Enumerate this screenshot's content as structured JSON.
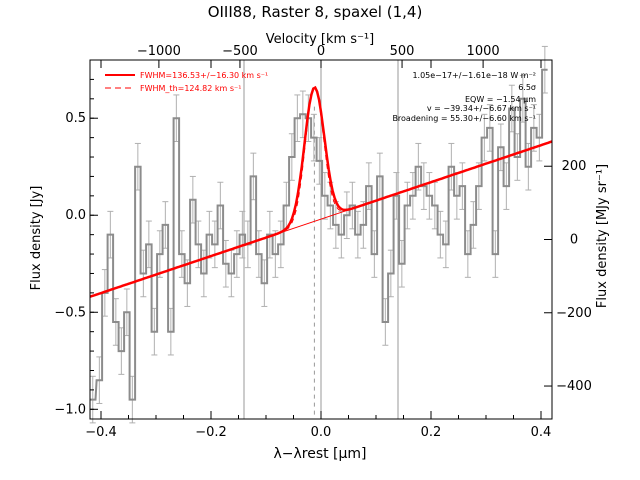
{
  "chart_data": {
    "type": "line",
    "title": "OIII88, Raster 8, spaxel (1,4)",
    "xlabel": "λ−λrest [μm]",
    "ylabel": "Flux density [Jy]",
    "y2label": "Flux density [MJy sr⁻¹]",
    "topxlabel": "Velocity [km s⁻¹]",
    "xlim": [
      -0.42,
      0.42
    ],
    "ylim": [
      -1.05,
      0.8
    ],
    "y2lim": [
      -490,
      490
    ],
    "xticks": [
      -0.4,
      -0.2,
      0.0,
      0.2,
      0.4
    ],
    "xticklabels": [
      "−0.4",
      "−0.2",
      "0.0",
      "0.2",
      "0.4"
    ],
    "yticks": [
      -1.0,
      -0.5,
      0.0,
      0.5
    ],
    "yticklabels": [
      "−1.0",
      "−0.5",
      "0.0",
      "0.5"
    ],
    "y2ticks": [
      -400,
      -200,
      0,
      200
    ],
    "y2ticklabels": [
      "−400",
      "−200",
      "0",
      "200"
    ],
    "top_velocity_ticks": [
      -1000,
      -500,
      0,
      500,
      1000
    ],
    "top_velocity_labels": [
      "−1000",
      "−500",
      "0",
      "500",
      "1000"
    ],
    "vertical_lines_x": [
      -0.14,
      0.0,
      0.14
    ],
    "legend": [
      {
        "label": "FWHM=136.53+/−16.30 km s⁻¹",
        "style": "solid",
        "color": "#ff0000"
      },
      {
        "label": "FWHM_th=124.82 km s⁻¹",
        "style": "dashed",
        "color": "#ff0000"
      }
    ],
    "annotations": [
      "1.05e−17+/−1.61e−18 W m⁻²",
      "6.5σ",
      "EQW = −1.54 μm",
      "v = −39.34+/−6.67 km s⁻¹",
      "Broadening = 55.30+/−6.60 km s⁻¹"
    ],
    "fit": {
      "baseline_at_xmin": -0.42,
      "baseline_at_xmax": 0.38,
      "gauss_center": -0.012,
      "gauss_amplitude": 0.69,
      "gauss_sigma": 0.018
    },
    "series": [
      {
        "name": "spectrum",
        "x": [
          -0.415,
          -0.403,
          -0.393,
          -0.383,
          -0.373,
          -0.363,
          -0.353,
          -0.343,
          -0.333,
          -0.323,
          -0.313,
          -0.303,
          -0.293,
          -0.283,
          -0.273,
          -0.263,
          -0.253,
          -0.243,
          -0.233,
          -0.223,
          -0.213,
          -0.203,
          -0.193,
          -0.183,
          -0.173,
          -0.163,
          -0.153,
          -0.143,
          -0.133,
          -0.123,
          -0.113,
          -0.103,
          -0.093,
          -0.083,
          -0.073,
          -0.063,
          -0.053,
          -0.043,
          -0.033,
          -0.023,
          -0.013,
          -0.003,
          0.007,
          0.017,
          0.027,
          0.037,
          0.047,
          0.057,
          0.067,
          0.077,
          0.087,
          0.097,
          0.107,
          0.117,
          0.127,
          0.137,
          0.147,
          0.157,
          0.167,
          0.177,
          0.187,
          0.197,
          0.207,
          0.217,
          0.227,
          0.237,
          0.247,
          0.257,
          0.267,
          0.277,
          0.287,
          0.297,
          0.307,
          0.317,
          0.327,
          0.337,
          0.347,
          0.357,
          0.367,
          0.377,
          0.387,
          0.397,
          0.407
        ],
        "y": [
          -0.95,
          -0.85,
          -0.4,
          -0.1,
          -0.55,
          -0.7,
          -0.5,
          -0.95,
          0.25,
          -0.3,
          -0.15,
          -0.6,
          -0.2,
          -0.05,
          -0.6,
          0.5,
          -0.2,
          -0.35,
          0.08,
          -0.15,
          -0.3,
          -0.1,
          -0.15,
          0.05,
          -0.25,
          -0.3,
          -0.2,
          -0.1,
          -0.15,
          0.2,
          -0.2,
          -0.35,
          -0.1,
          -0.2,
          -0.15,
          0.05,
          0.3,
          0.5,
          0.52,
          0.5,
          0.4,
          0.28,
          0.1,
          0.05,
          -0.05,
          -0.1,
          0.0,
          0.05,
          -0.1,
          -0.05,
          0.15,
          -0.2,
          0.2,
          -0.55,
          -0.3,
          0.1,
          -0.25,
          0.05,
          0.1,
          0.25,
          0.15,
          0.1,
          0.05,
          -0.1,
          -0.15,
          0.25,
          0.1,
          0.15,
          -0.2,
          -0.05,
          0.15,
          0.4,
          0.45,
          -0.2,
          0.35,
          0.15,
          0.55,
          0.3,
          0.6,
          0.25,
          0.45,
          0.4,
          0.75
        ],
        "err": 0.12
      }
    ]
  }
}
